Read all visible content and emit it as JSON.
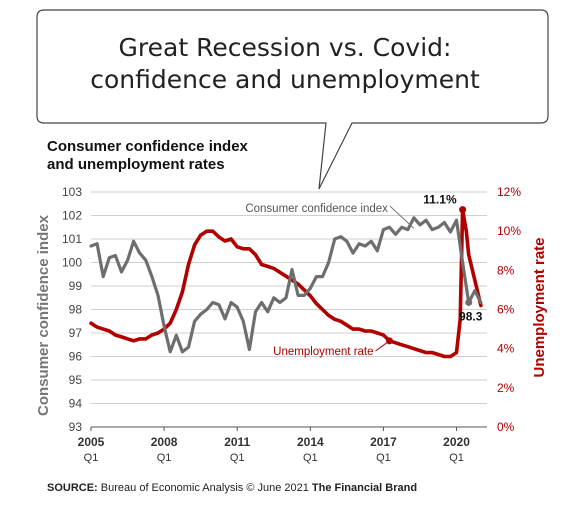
{
  "headline": {
    "line1": "Great Recession vs. Covid:",
    "line2": "confidence and unemployment"
  },
  "subtitle": {
    "line1": "Consumer confidence index",
    "line2": "and unemployment rates"
  },
  "source": {
    "label": "SOURCE:",
    "text": "Bureau of Economic Analysis © June 2021",
    "brand": "The Financial Brand"
  },
  "colors": {
    "confidence": "#6e6e6e",
    "unemployment": "#b00000",
    "grid": "#cfcfcf"
  },
  "chart_data": {
    "type": "line",
    "ylabel_left": "Consumer confidence index",
    "ylabel_right": "Unemployment rate",
    "ylim_left": [
      93,
      103
    ],
    "ylim_right": [
      0,
      12
    ],
    "yticks_left": [
      "103",
      "102",
      "101",
      "100",
      "99",
      "98",
      "97",
      "96",
      "95",
      "94",
      "93"
    ],
    "yticks_right": [
      "12%",
      "10%",
      "8%",
      "6%",
      "4%",
      "2%",
      "0%"
    ],
    "xlim": [
      2005.0,
      2021.25
    ],
    "xticks": [
      {
        "x": 2005,
        "year": "2005",
        "q": "Q1"
      },
      {
        "x": 2008,
        "year": "2008",
        "q": "Q1"
      },
      {
        "x": 2011,
        "year": "2011",
        "q": "Q1"
      },
      {
        "x": 2014,
        "year": "2014",
        "q": "Q1"
      },
      {
        "x": 2017,
        "year": "2017",
        "q": "Q1"
      },
      {
        "x": 2020,
        "year": "2020",
        "q": "Q1"
      }
    ],
    "grid": true,
    "series": [
      {
        "name": "Consumer confidence index",
        "axis": "left",
        "x": [
          2005.0,
          2005.25,
          2005.5,
          2005.75,
          2006.0,
          2006.25,
          2006.5,
          2006.75,
          2007.0,
          2007.25,
          2007.5,
          2007.75,
          2008.0,
          2008.25,
          2008.5,
          2008.75,
          2009.0,
          2009.25,
          2009.5,
          2009.75,
          2010.0,
          2010.25,
          2010.5,
          2010.75,
          2011.0,
          2011.25,
          2011.5,
          2011.75,
          2012.0,
          2012.25,
          2012.5,
          2012.75,
          2013.0,
          2013.25,
          2013.5,
          2013.75,
          2014.0,
          2014.25,
          2014.5,
          2014.75,
          2015.0,
          2015.25,
          2015.5,
          2015.75,
          2016.0,
          2016.25,
          2016.5,
          2016.75,
          2017.0,
          2017.25,
          2017.5,
          2017.75,
          2018.0,
          2018.25,
          2018.5,
          2018.75,
          2019.0,
          2019.25,
          2019.5,
          2019.75,
          2020.0,
          2020.25,
          2020.5,
          2020.75,
          2021.0
        ],
        "values": [
          100.7,
          100.8,
          99.4,
          100.2,
          100.3,
          99.6,
          100.1,
          100.9,
          100.4,
          100.1,
          99.4,
          98.6,
          97.3,
          96.2,
          96.9,
          96.2,
          96.4,
          97.5,
          97.8,
          98.0,
          98.3,
          98.2,
          97.6,
          98.3,
          98.1,
          97.5,
          96.3,
          97.9,
          98.3,
          97.9,
          98.5,
          98.3,
          98.5,
          99.7,
          98.6,
          98.6,
          98.9,
          99.4,
          99.4,
          100.0,
          101.0,
          101.1,
          100.9,
          100.4,
          100.8,
          100.7,
          100.9,
          100.5,
          101.4,
          101.5,
          101.2,
          101.5,
          101.4,
          101.9,
          101.6,
          101.8,
          101.4,
          101.5,
          101.7,
          101.3,
          101.8,
          100.0,
          98.3,
          98.8,
          98.3
        ]
      },
      {
        "name": "Unemployment rate",
        "axis": "right",
        "x": [
          2005.0,
          2005.25,
          2005.5,
          2005.75,
          2006.0,
          2006.25,
          2006.5,
          2006.75,
          2007.0,
          2007.25,
          2007.5,
          2007.75,
          2008.0,
          2008.25,
          2008.5,
          2008.75,
          2009.0,
          2009.25,
          2009.5,
          2009.75,
          2010.0,
          2010.25,
          2010.5,
          2010.75,
          2011.0,
          2011.25,
          2011.5,
          2011.75,
          2012.0,
          2012.25,
          2012.5,
          2012.75,
          2013.0,
          2013.25,
          2013.5,
          2013.75,
          2014.0,
          2014.25,
          2014.5,
          2014.75,
          2015.0,
          2015.25,
          2015.5,
          2015.75,
          2016.0,
          2016.25,
          2016.5,
          2016.75,
          2017.0,
          2017.25,
          2017.5,
          2017.75,
          2018.0,
          2018.25,
          2018.5,
          2018.75,
          2019.0,
          2019.25,
          2019.5,
          2019.75,
          2020.0,
          2020.15,
          2020.25,
          2020.4,
          2020.5,
          2020.75,
          2021.0
        ],
        "values": [
          5.3,
          5.1,
          5.0,
          4.9,
          4.7,
          4.6,
          4.5,
          4.4,
          4.5,
          4.5,
          4.7,
          4.8,
          5.0,
          5.3,
          6.0,
          6.9,
          8.3,
          9.3,
          9.8,
          10.0,
          10.0,
          9.7,
          9.5,
          9.6,
          9.2,
          9.1,
          9.1,
          8.8,
          8.3,
          8.2,
          8.1,
          7.9,
          7.7,
          7.5,
          7.3,
          7.0,
          6.7,
          6.3,
          6.0,
          5.7,
          5.5,
          5.4,
          5.2,
          5.0,
          5.0,
          4.9,
          4.9,
          4.8,
          4.7,
          4.4,
          4.3,
          4.2,
          4.1,
          4.0,
          3.9,
          3.8,
          3.8,
          3.7,
          3.6,
          3.6,
          3.8,
          5.5,
          11.1,
          10.0,
          8.8,
          7.5,
          6.2
        ]
      }
    ],
    "annotations": [
      {
        "series": 0,
        "text": "Consumer confidence index",
        "anchor_x": 2018.25,
        "anchor_y": 101.45
      },
      {
        "series": 1,
        "text": "Unemployment rate",
        "anchor_x": 2017.25,
        "anchor_y": 4.4
      },
      {
        "series": 1,
        "text": "11.1%",
        "anchor_x": 2020.25,
        "anchor_y": 11.1
      },
      {
        "series": 0,
        "text": "98.3",
        "anchor_x": 2020.5,
        "anchor_y": 98.3
      }
    ]
  }
}
